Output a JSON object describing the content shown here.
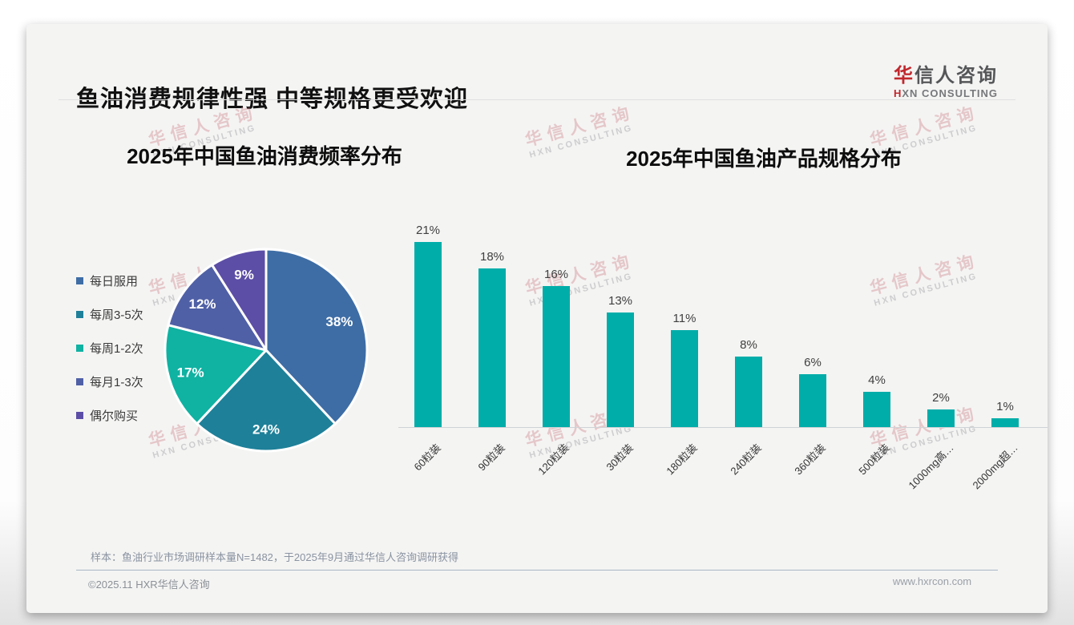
{
  "page": {
    "title": "鱼油消费规律性强 中等规格更受欢迎",
    "logo": {
      "cn_first": "华",
      "cn_rest": "信人咨询",
      "en_first": "H",
      "en_rest": "XN CONSULTING"
    },
    "watermark": {
      "cn": "华信人咨询",
      "en": "HXN CONSULTING"
    },
    "footer": {
      "note": "样本：鱼油行业市场调研样本量N=1482，于2025年9月通过华信人咨询调研获得",
      "copyright": "©2025.11 HXR华信人咨询",
      "website": "www.hxrcon.com"
    }
  },
  "chart_data": [
    {
      "type": "pie",
      "title": "2025年中国鱼油消费频率分布",
      "labels": [
        "每日服用",
        "每周3-5次",
        "每周1-2次",
        "每月1-3次",
        "偶尔购买"
      ],
      "values": [
        38,
        24,
        17,
        12,
        9
      ],
      "unit": "%",
      "colors": [
        "#3e6da5",
        "#1e8099",
        "#10b2a2",
        "#5060a6",
        "#5c4ea6"
      ],
      "start_angle_deg": 0,
      "direction": "clockwise",
      "legend_position": "left",
      "slice_border_color": "#ffffff"
    },
    {
      "type": "bar",
      "title": "2025年中国鱼油产品规格分布",
      "categories": [
        "60粒装",
        "90粒装",
        "120粒装",
        "30粒装",
        "180粒装",
        "240粒装",
        "360粒装",
        "500粒装",
        "1000mg高…",
        "2000mg超…"
      ],
      "values": [
        21,
        18,
        16,
        13,
        11,
        8,
        6,
        4,
        2,
        1
      ],
      "unit": "%",
      "bar_color": "#00ada9",
      "ylim": [
        0,
        22
      ],
      "grid": false,
      "data_labels": true,
      "xlabel_rotation_deg": 45
    }
  ]
}
